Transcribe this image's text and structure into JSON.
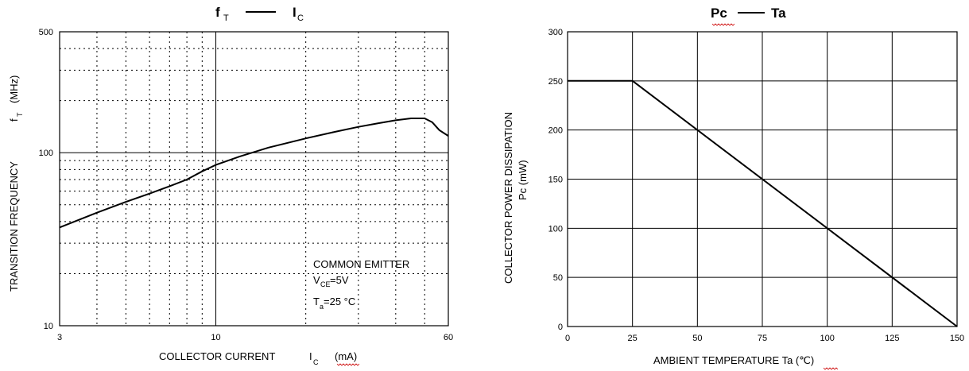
{
  "chart_data": [
    {
      "type": "line",
      "title_main": "f",
      "title_main_sub": "T",
      "title_dash": "——",
      "title_right": "I",
      "title_right_sub": "C",
      "xlabel": "COLLECTOR CURRENT",
      "xlabel_symbol": "I",
      "xlabel_symbol_sub": "C",
      "xlabel_unit": "(mA)",
      "ylabel": "TRANSITION FREQUENCY",
      "ylabel_symbol": "f",
      "ylabel_symbol_sub": "T",
      "ylabel_unit": "(MHz)",
      "x_scale": "log",
      "y_scale": "log",
      "xlim": [
        3,
        60
      ],
      "ylim": [
        10,
        500
      ],
      "x_tick_labels": [
        "3",
        "10",
        "60"
      ],
      "y_tick_labels": [
        "10",
        "100",
        "500"
      ],
      "annotation": {
        "line1": "COMMON EMITTER",
        "line2_prefix": "V",
        "line2_sub": "CE",
        "line2_value": "=5V",
        "line3_prefix": "T",
        "line3_sub": "a",
        "line3_value": "=25 °C"
      },
      "series": [
        {
          "x": [
            3,
            4,
            5,
            6,
            7,
            8,
            9,
            10,
            12,
            15,
            20,
            25,
            30,
            35,
            40,
            45,
            50,
            53,
            56,
            60
          ],
          "y": [
            37,
            45,
            52,
            58,
            64,
            70,
            78,
            85,
            95,
            107,
            121,
            132,
            141,
            148,
            154,
            158,
            158,
            150,
            135,
            125
          ]
        }
      ],
      "grid": true
    },
    {
      "type": "line",
      "title_left": "Pc",
      "title_dash": "——",
      "title_right": "Ta",
      "xlabel": "AMBIENT TEMPERATURE Ta (℃)",
      "ylabel": "COLLECTOR POWER DISSIPATION",
      "ylabel2": "Pc (mW)",
      "xlim": [
        0,
        150
      ],
      "ylim": [
        0,
        300
      ],
      "x_ticks": [
        0,
        25,
        50,
        75,
        100,
        125,
        150
      ],
      "y_ticks": [
        0,
        50,
        100,
        150,
        200,
        250,
        300
      ],
      "series": [
        {
          "x": [
            0,
            25,
            150
          ],
          "y": [
            250,
            250,
            0
          ]
        }
      ],
      "grid": true
    }
  ]
}
